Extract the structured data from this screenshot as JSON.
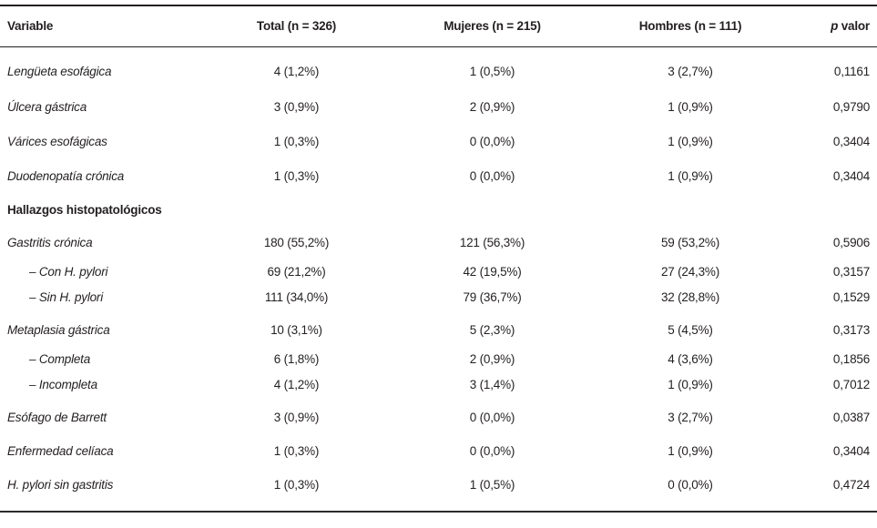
{
  "colors": {
    "text": "#231f20",
    "rule_top": "#231f20",
    "rule_bottom": "#2b2b2b",
    "background": "#ffffff"
  },
  "table": {
    "header": {
      "variable": "Variable",
      "total": "Total (n = 326)",
      "mujeres": "Mujeres (n = 215)",
      "hombres": "Hombres (n = 111)",
      "p_italic": "p",
      "p_rest": " valor"
    },
    "rows": [
      {
        "label": "Lengüeta esofágica",
        "style": "main",
        "total": "4 (1,2%)",
        "mujeres": "1 (0,5%)",
        "hombres": "3 (2,7%)",
        "p": "0,1161"
      },
      {
        "label": "Úlcera gástrica",
        "style": "main",
        "total": "3 (0,9%)",
        "mujeres": "2 (0,9%)",
        "hombres": "1 (0,9%)",
        "p": "0,9790"
      },
      {
        "label": "Várices esofágicas",
        "style": "main",
        "total": "1 (0,3%)",
        "mujeres": "0 (0,0%)",
        "hombres": "1 (0,9%)",
        "p": "0,3404"
      },
      {
        "label": "Duodenopatía crónica",
        "style": "main",
        "total": "1 (0,3%)",
        "mujeres": "0 (0,0%)",
        "hombres": "1 (0,9%)",
        "p": "0,3404"
      },
      {
        "label": "Hallazgos histopatológicos",
        "style": "section",
        "total": "",
        "mujeres": "",
        "hombres": "",
        "p": ""
      },
      {
        "label": "Gastritis crónica",
        "style": "main",
        "total": "180 (55,2%)",
        "mujeres": "121 (56,3%)",
        "hombres": "59 (53,2%)",
        "p": "0,5906"
      },
      {
        "label": "– Con H. pylori",
        "style": "sub",
        "total": "69 (21,2%)",
        "mujeres": "42 (19,5%)",
        "hombres": "27 (24,3%)",
        "p": "0,3157"
      },
      {
        "label": "– Sin H. pylori",
        "style": "sub",
        "total": "111 (34,0%)",
        "mujeres": "79 (36,7%)",
        "hombres": "32 (28,8%)",
        "p": "0,1529"
      },
      {
        "label": "Metaplasia gástrica",
        "style": "main",
        "total": "10 (3,1%)",
        "mujeres": "5 (2,3%)",
        "hombres": "5 (4,5%)",
        "p": "0,3173"
      },
      {
        "label": "– Completa",
        "style": "sub",
        "total": "6 (1,8%)",
        "mujeres": "2 (0,9%)",
        "hombres": "4 (3,6%)",
        "p": "0,1856"
      },
      {
        "label": "– Incompleta",
        "style": "sub",
        "total": "4 (1,2%)",
        "mujeres": "3 (1,4%)",
        "hombres": "1 (0,9%)",
        "p": "0,7012"
      },
      {
        "label": "Esófago de Barrett",
        "style": "main",
        "total": "3 (0,9%)",
        "mujeres": "0 (0,0%)",
        "hombres": "3 (2,7%)",
        "p": "0,0387"
      },
      {
        "label": "Enfermedad celíaca",
        "style": "main",
        "total": "1 (0,3%)",
        "mujeres": "0 (0,0%)",
        "hombres": "1 (0,9%)",
        "p": "0,3404"
      },
      {
        "label": "H. pylori sin gastritis",
        "style": "main",
        "total": "1 (0,3%)",
        "mujeres": "1 (0,5%)",
        "hombres": "0 (0,0%)",
        "p": "0,4724"
      }
    ]
  }
}
